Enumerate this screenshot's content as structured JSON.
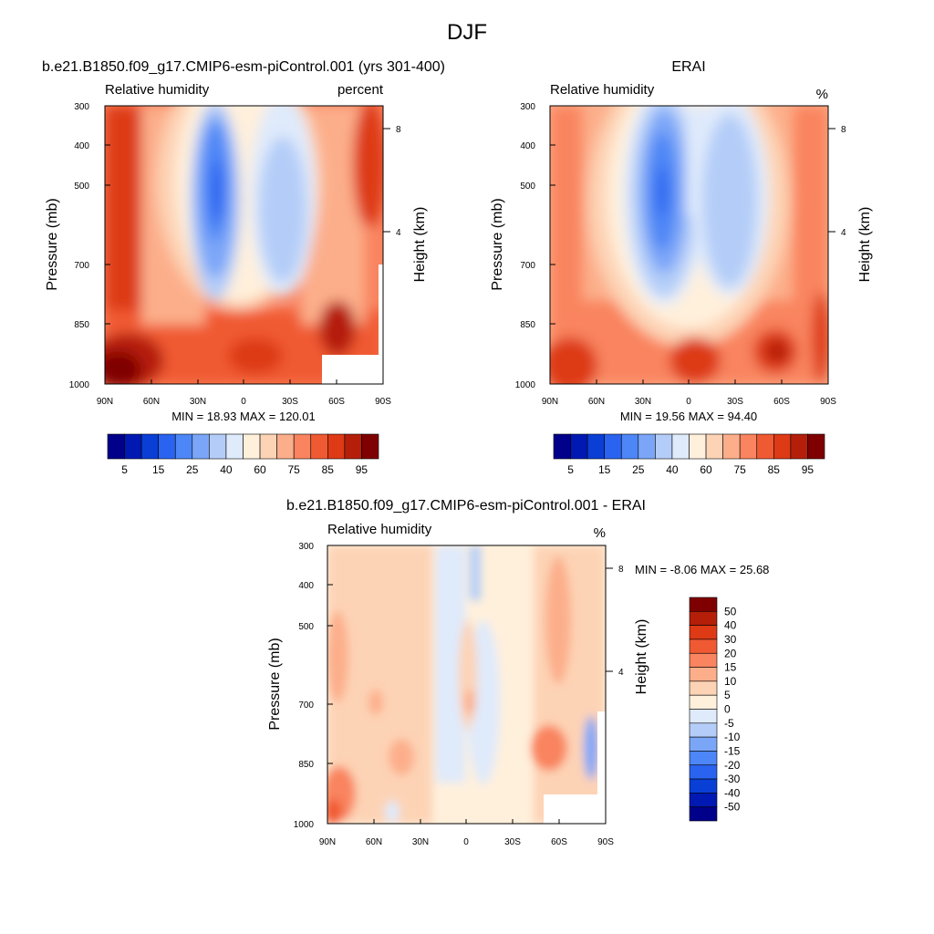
{
  "figure": {
    "title": "DJF",
    "colors": {
      "abs_scale": [
        "#00008b",
        "#0019b3",
        "#0a3fd6",
        "#2a63ef",
        "#4d86f6",
        "#7ba6f8",
        "#b4cdf8",
        "#dfeafb",
        "#fff0dc",
        "#fdd3b5",
        "#fcae8a",
        "#f9845f",
        "#f05a33",
        "#dd3a15",
        "#b51f0a",
        "#7f0000"
      ],
      "diff_scale": [
        "#00008b",
        "#0019b3",
        "#0a3fd6",
        "#2a63ef",
        "#4d86f6",
        "#7ba6f8",
        "#b4cdf8",
        "#dfeafb",
        "#fff0dc",
        "#fdd3b5",
        "#fcae8a",
        "#f9845f",
        "#f05a33",
        "#dd3a15",
        "#b51f0a",
        "#7f0000"
      ]
    }
  },
  "chart_data": [
    {
      "type": "heatmap",
      "title": "b.e21.B1850.f09_g17.CMIP6-esm-piControl.001 (yrs 301-400)",
      "left_label": "Relative humidity",
      "right_label": "percent",
      "ylabel": "Pressure (mb)",
      "y2label": "Height (km)",
      "x_ticks": [
        "90N",
        "60N",
        "30N",
        "0",
        "30S",
        "60S",
        "90S"
      ],
      "y_ticks": [
        "300",
        "400",
        "500",
        "700",
        "850",
        "1000"
      ],
      "y2_ticks": [
        "8",
        "4"
      ],
      "stats": "MIN =  18.93  MAX = 120.01",
      "colorbar_labels": [
        "5",
        "15",
        "25",
        "40",
        "60",
        "75",
        "85",
        "95"
      ],
      "min": 18.93,
      "max": 120.01,
      "xlim": [
        90,
        -90
      ],
      "ylim": [
        1000,
        300
      ]
    },
    {
      "type": "heatmap",
      "title": "ERAI",
      "left_label": "Relative humidity",
      "right_label": "%",
      "ylabel": "Pressure (mb)",
      "y2label": "Height (km)",
      "x_ticks": [
        "90N",
        "60N",
        "30N",
        "0",
        "30S",
        "60S",
        "90S"
      ],
      "y_ticks": [
        "300",
        "400",
        "500",
        "700",
        "850",
        "1000"
      ],
      "y2_ticks": [
        "8",
        "4"
      ],
      "stats": "MIN =  19.56  MAX =  94.40",
      "colorbar_labels": [
        "5",
        "15",
        "25",
        "40",
        "60",
        "75",
        "85",
        "95"
      ],
      "min": 19.56,
      "max": 94.4,
      "xlim": [
        90,
        -90
      ],
      "ylim": [
        1000,
        300
      ]
    },
    {
      "type": "heatmap",
      "title": "b.e21.B1850.f09_g17.CMIP6-esm-piControl.001 - ERAI",
      "left_label": "Relative humidity",
      "right_label": "%",
      "ylabel": "Pressure (mb)",
      "y2label": "Height (km)",
      "x_ticks": [
        "90N",
        "60N",
        "30N",
        "0",
        "30S",
        "60S",
        "90S"
      ],
      "y_ticks": [
        "300",
        "400",
        "500",
        "700",
        "850",
        "1000"
      ],
      "y2_ticks": [
        "8",
        "4"
      ],
      "stats": "MIN =  -8.06  MAX =  25.68",
      "colorbar_labels": [
        "50",
        "40",
        "30",
        "20",
        "15",
        "10",
        "5",
        "0",
        "-5",
        "-10",
        "-15",
        "-20",
        "-30",
        "-40",
        "-50"
      ],
      "min": -8.06,
      "max": 25.68,
      "xlim": [
        90,
        -90
      ],
      "ylim": [
        1000,
        300
      ]
    }
  ]
}
